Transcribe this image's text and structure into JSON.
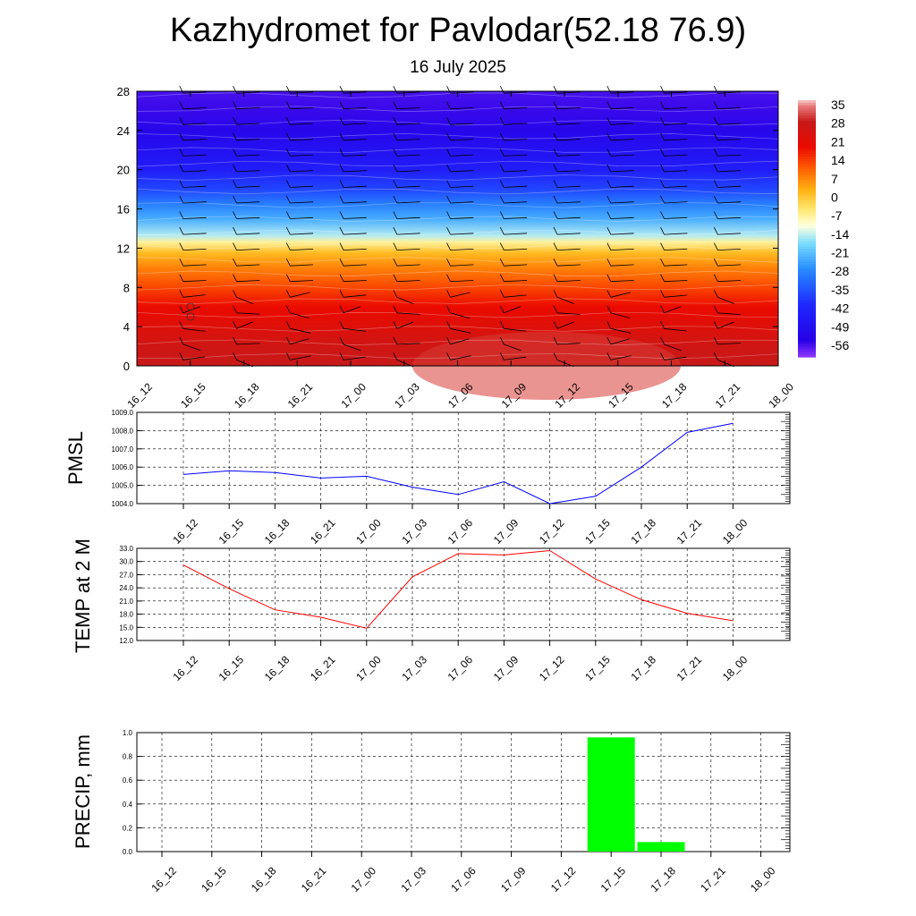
{
  "page": {
    "title": "Kazhydromet for Pavlodar(52.18 76.9)",
    "subtitle": "16 July 2025"
  },
  "chart_data": [
    {
      "type": "heatmap",
      "title": "",
      "xlabel": "",
      "ylabel": "",
      "categories": [
        "16_12",
        "16_15",
        "16_18",
        "16_21",
        "17_00",
        "17_03",
        "17_06",
        "17_09",
        "17_12",
        "17_15",
        "17_18",
        "17_21",
        "18_00"
      ],
      "yticks": [
        0,
        4,
        8,
        12,
        16,
        20,
        24,
        28
      ],
      "ylim": [
        0,
        28
      ],
      "colorbar": {
        "labels": [
          35,
          28,
          21,
          14,
          7,
          0,
          -7,
          -14,
          -21,
          -28,
          -35,
          -42,
          -49,
          -56
        ],
        "range": [
          -63,
          38
        ]
      },
      "note_values": "temperature by level: approx +30 near 0, ~0 near 13, ~-55 near 28",
      "warm_bubble_time_index": 8
    },
    {
      "type": "line",
      "ylabel": "PMSL",
      "categories": [
        "16_12",
        "16_15",
        "16_18",
        "16_21",
        "17_00",
        "17_03",
        "17_06",
        "17_09",
        "17_12",
        "17_15",
        "17_18",
        "17_21",
        "18_00"
      ],
      "series": [
        {
          "values": [
            1005.6,
            1005.8,
            1005.7,
            1005.4,
            1005.5,
            1004.9,
            1004.5,
            1005.2,
            1004.0,
            1004.4,
            1006.0,
            1007.9,
            1008.4
          ],
          "color": "#0000ff"
        }
      ],
      "ylim": [
        1004.0,
        1009.0
      ],
      "yticks": [
        "1004.0",
        "1005.0",
        "1006.0",
        "1007.0",
        "1008.0",
        "1009.0"
      ],
      "grid": true
    },
    {
      "type": "line",
      "ylabel": "TEMP at 2 M",
      "categories": [
        "16_12",
        "16_15",
        "16_18",
        "16_21",
        "17_00",
        "17_03",
        "17_06",
        "17_09",
        "17_12",
        "17_15",
        "17_18",
        "17_21",
        "18_00"
      ],
      "series": [
        {
          "values": [
            29.2,
            23.8,
            19.0,
            17.3,
            14.8,
            26.5,
            31.8,
            31.5,
            32.5,
            26.0,
            21.3,
            18.2,
            16.5
          ],
          "color": "#ff0000"
        }
      ],
      "ylim": [
        12.0,
        33.0
      ],
      "yticks": [
        "12.0",
        "15.0",
        "18.0",
        "21.0",
        "24.0",
        "27.0",
        "30.0",
        "33.0"
      ],
      "grid": true
    },
    {
      "type": "bar",
      "ylabel": "PRECIP, mm",
      "categories": [
        "16_12",
        "16_15",
        "16_18",
        "16_21",
        "17_00",
        "17_03",
        "17_06",
        "17_09",
        "17_12",
        "17_15",
        "17_18",
        "17_21",
        "18_00"
      ],
      "values": [
        0,
        0,
        0,
        0,
        0,
        0,
        0,
        0,
        0,
        0.96,
        0.08,
        0,
        0
      ],
      "color": "#00ff00",
      "ylim": [
        0,
        1.0
      ],
      "yticks": [
        "0.0",
        "0.2",
        "0.4",
        "0.6",
        "0.8",
        "1.0"
      ],
      "grid": true
    }
  ]
}
